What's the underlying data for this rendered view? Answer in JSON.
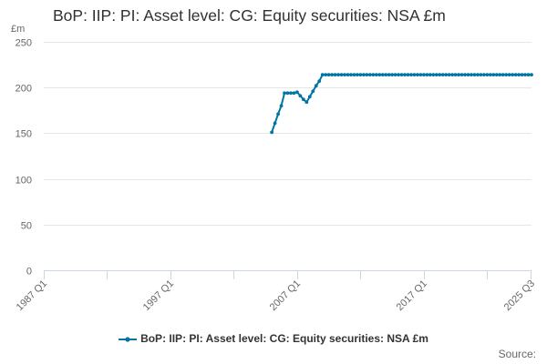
{
  "title": "BoP: IIP: PI: Asset level: CG: Equity securities: NSA £m",
  "unit_label": "£m",
  "source_label": "Source:",
  "colors": {
    "series": "#0075a3",
    "grid": "#e6e6e6",
    "axis": "#ccd6eb",
    "text": "#666666"
  },
  "chart_data": {
    "type": "line",
    "title": "BoP: IIP: PI: Asset level: CG: Equity securities: NSA £m",
    "ylabel": "£m",
    "ylim": [
      0,
      250
    ],
    "yticks": [
      0,
      50,
      100,
      150,
      200,
      250
    ],
    "x_range": [
      "1987 Q1",
      "2025 Q3"
    ],
    "xticks": [
      "1987 Q1",
      "1997 Q1",
      "2007 Q1",
      "2017 Q1",
      "2025 Q3"
    ],
    "grid": true,
    "legend_position": "bottom",
    "series": [
      {
        "name": "BoP: IIP: PI: Asset level: CG: Equity securities: NSA £m",
        "color": "#0075a3",
        "points": [
          [
            "2005 Q1",
            151
          ],
          [
            "2005 Q2",
            161
          ],
          [
            "2005 Q3",
            171
          ],
          [
            "2005 Q4",
            180
          ],
          [
            "2006 Q1",
            194
          ],
          [
            "2006 Q2",
            194
          ],
          [
            "2006 Q3",
            194
          ],
          [
            "2006 Q4",
            194
          ],
          [
            "2007 Q1",
            195
          ],
          [
            "2007 Q2",
            191
          ],
          [
            "2007 Q3",
            187
          ],
          [
            "2007 Q4",
            184
          ],
          [
            "2008 Q1",
            190
          ],
          [
            "2008 Q2",
            196
          ],
          [
            "2008 Q3",
            202
          ],
          [
            "2008 Q4",
            207
          ],
          [
            "2009 Q1",
            214
          ],
          [
            "2009 Q2",
            214
          ],
          [
            "2009 Q3",
            214
          ],
          [
            "2009 Q4",
            214
          ],
          [
            "2010 Q1",
            214
          ],
          [
            "2010 Q2",
            214
          ],
          [
            "2010 Q3",
            214
          ],
          [
            "2010 Q4",
            214
          ],
          [
            "2011 Q1",
            214
          ],
          [
            "2011 Q2",
            214
          ],
          [
            "2011 Q3",
            214
          ],
          [
            "2011 Q4",
            214
          ],
          [
            "2012 Q1",
            214
          ],
          [
            "2012 Q2",
            214
          ],
          [
            "2012 Q3",
            214
          ],
          [
            "2012 Q4",
            214
          ],
          [
            "2013 Q1",
            214
          ],
          [
            "2013 Q2",
            214
          ],
          [
            "2013 Q3",
            214
          ],
          [
            "2013 Q4",
            214
          ],
          [
            "2014 Q1",
            214
          ],
          [
            "2014 Q2",
            214
          ],
          [
            "2014 Q3",
            214
          ],
          [
            "2014 Q4",
            214
          ],
          [
            "2015 Q1",
            214
          ],
          [
            "2015 Q2",
            214
          ],
          [
            "2015 Q3",
            214
          ],
          [
            "2015 Q4",
            214
          ],
          [
            "2016 Q1",
            214
          ],
          [
            "2016 Q2",
            214
          ],
          [
            "2016 Q3",
            214
          ],
          [
            "2016 Q4",
            214
          ],
          [
            "2017 Q1",
            214
          ],
          [
            "2017 Q2",
            214
          ],
          [
            "2017 Q3",
            214
          ],
          [
            "2017 Q4",
            214
          ],
          [
            "2018 Q1",
            214
          ],
          [
            "2018 Q2",
            214
          ],
          [
            "2018 Q3",
            214
          ],
          [
            "2018 Q4",
            214
          ],
          [
            "2019 Q1",
            214
          ],
          [
            "2019 Q2",
            214
          ],
          [
            "2019 Q3",
            214
          ],
          [
            "2019 Q4",
            214
          ],
          [
            "2020 Q1",
            214
          ],
          [
            "2020 Q2",
            214
          ],
          [
            "2020 Q3",
            214
          ],
          [
            "2020 Q4",
            214
          ],
          [
            "2021 Q1",
            214
          ],
          [
            "2021 Q2",
            214
          ],
          [
            "2021 Q3",
            214
          ],
          [
            "2021 Q4",
            214
          ],
          [
            "2022 Q1",
            214
          ],
          [
            "2022 Q2",
            214
          ],
          [
            "2022 Q3",
            214
          ],
          [
            "2022 Q4",
            214
          ],
          [
            "2023 Q1",
            214
          ],
          [
            "2023 Q2",
            214
          ],
          [
            "2023 Q3",
            214
          ],
          [
            "2023 Q4",
            214
          ],
          [
            "2024 Q1",
            214
          ],
          [
            "2024 Q2",
            214
          ],
          [
            "2024 Q3",
            214
          ],
          [
            "2024 Q4",
            214
          ],
          [
            "2025 Q1",
            214
          ],
          [
            "2025 Q2",
            214
          ],
          [
            "2025 Q3",
            214
          ]
        ]
      }
    ]
  }
}
